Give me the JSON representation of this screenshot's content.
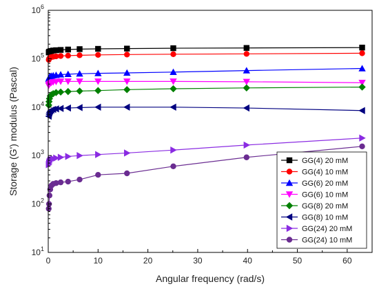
{
  "chart_data": {
    "type": "line",
    "xlabel": "Angular frequency (rad/s)",
    "ylabel": "Storage (G') modulus (Pascal)",
    "xlim": [
      0,
      65
    ],
    "ylim": [
      10,
      1000000
    ],
    "yscale": "log",
    "x_ticks": [
      {
        "value": 0,
        "label": "0"
      },
      {
        "value": 10,
        "label": "10"
      },
      {
        "value": 20,
        "label": "20"
      },
      {
        "value": 30,
        "label": "30"
      },
      {
        "value": 40,
        "label": "40"
      },
      {
        "value": 50,
        "label": "50"
      },
      {
        "value": 60,
        "label": "60"
      }
    ],
    "y_ticks": [
      {
        "value": 10,
        "base": "10",
        "exp": "1"
      },
      {
        "value": 100,
        "base": "10",
        "exp": "2"
      },
      {
        "value": 1000,
        "base": "10",
        "exp": "3"
      },
      {
        "value": 10000,
        "base": "10",
        "exp": "4"
      },
      {
        "value": 100000,
        "base": "10",
        "exp": "5"
      },
      {
        "value": 1000000,
        "base": "10",
        "exp": "6"
      }
    ],
    "legend_position": "bottom-right",
    "series": [
      {
        "name": "GG(4) 20 mM",
        "color": "#000000",
        "marker": "square",
        "x": [
          0.1,
          0.16,
          0.25,
          0.4,
          0.63,
          1,
          1.58,
          2.5,
          3.98,
          6.3,
          10,
          15.8,
          25.1,
          39.8,
          63
        ],
        "y": [
          135000,
          138000,
          140000,
          142000,
          145000,
          148000,
          150000,
          152000,
          155000,
          158000,
          160000,
          162000,
          165000,
          167000,
          170000
        ]
      },
      {
        "name": "GG(4) 10 mM",
        "color": "#ff0000",
        "marker": "circle",
        "x": [
          0.1,
          0.16,
          0.25,
          0.4,
          0.63,
          1,
          1.58,
          2.5,
          3.98,
          6.3,
          10,
          15.8,
          25.1,
          39.8,
          63
        ],
        "y": [
          95000,
          100000,
          103000,
          106000,
          108000,
          110000,
          112000,
          114000,
          116000,
          118000,
          120000,
          122000,
          124000,
          126000,
          130000
        ]
      },
      {
        "name": "GG(6) 20 mM",
        "color": "#0000ff",
        "marker": "triangle-up",
        "x": [
          0.1,
          0.16,
          0.25,
          0.4,
          0.63,
          1,
          1.58,
          2.5,
          3.98,
          6.3,
          10,
          15.8,
          25.1,
          39.8,
          63
        ],
        "y": [
          38000,
          40000,
          42000,
          43000,
          44000,
          45000,
          46000,
          47000,
          48000,
          49000,
          50000,
          51000,
          53000,
          57000,
          63000
        ]
      },
      {
        "name": "GG(6) 10 mM",
        "color": "#ff00ff",
        "marker": "triangle-down",
        "x": [
          0.1,
          0.16,
          0.25,
          0.4,
          0.63,
          1,
          1.58,
          2.5,
          3.98,
          6.3,
          10,
          15.8,
          25.1,
          39.8,
          63
        ],
        "y": [
          28000,
          29000,
          30000,
          31000,
          32000,
          33000,
          33500,
          34000,
          34000,
          34000,
          34000,
          34000,
          34000,
          33500,
          32000
        ]
      },
      {
        "name": "GG(8) 20 mM",
        "color": "#008000",
        "marker": "diamond",
        "x": [
          0.1,
          0.16,
          0.25,
          0.4,
          0.63,
          1,
          1.58,
          2.5,
          3.98,
          6.3,
          10,
          15.8,
          25.1,
          39.8,
          63
        ],
        "y": [
          11000,
          13000,
          15000,
          17000,
          18000,
          19000,
          20000,
          20500,
          21000,
          21500,
          22000,
          23000,
          24000,
          25000,
          26000
        ]
      },
      {
        "name": "GG(8) 10 mM",
        "color": "#000080",
        "marker": "triangle-left",
        "x": [
          0.1,
          0.16,
          0.25,
          0.4,
          0.63,
          1,
          1.58,
          2.5,
          3.98,
          6.3,
          10,
          15.8,
          25.1,
          39.8,
          63
        ],
        "y": [
          6500,
          7200,
          7800,
          8300,
          8700,
          9000,
          9200,
          9400,
          9600,
          9800,
          10000,
          10000,
          10000,
          9600,
          8500
        ]
      },
      {
        "name": "GG(24) 20 mM",
        "color": "#8a2be2",
        "marker": "triangle-right",
        "x": [
          0.1,
          0.16,
          0.25,
          0.4,
          0.63,
          1,
          1.58,
          2.5,
          3.98,
          6.3,
          10,
          15.8,
          25.1,
          39.8,
          63
        ],
        "y": [
          650,
          700,
          750,
          800,
          830,
          860,
          890,
          920,
          960,
          1000,
          1050,
          1130,
          1300,
          1650,
          2300
        ]
      },
      {
        "name": "GG(24) 10 mM",
        "color": "#6a2c91",
        "marker": "circle",
        "x": [
          0.1,
          0.16,
          0.25,
          0.4,
          0.63,
          1,
          1.58,
          2.5,
          3.98,
          6.3,
          10,
          15.8,
          25.1,
          39.8,
          63
        ],
        "y": [
          80,
          100,
          150,
          200,
          240,
          260,
          270,
          280,
          290,
          320,
          400,
          430,
          600,
          920,
          1550
        ]
      }
    ]
  }
}
